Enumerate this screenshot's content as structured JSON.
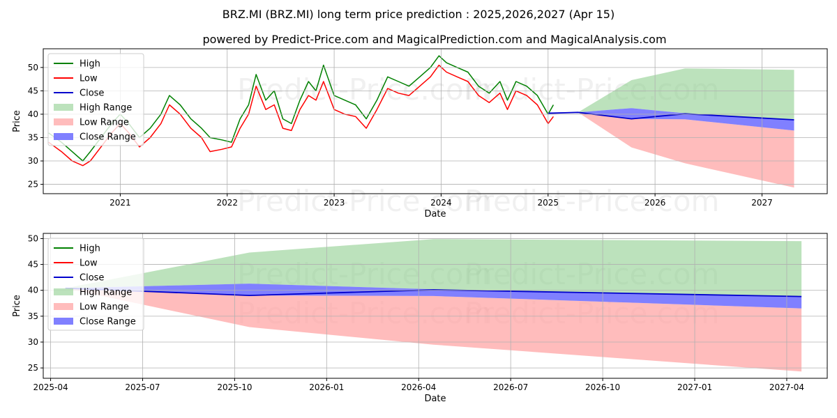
{
  "title": "BRZ.MI (BRZ.MI) long term price prediction : 2025,2026,2027 (Apr 15)",
  "subtitle": "powered by Predict-Price.com and MagicalPrediction.com and MagicalAnalysis.com",
  "watermark": "Predict-Price.com",
  "colors": {
    "high": "#008000",
    "low": "#ff0000",
    "close": "#0000cc",
    "high_range": "#90cf90",
    "low_range": "#ffa0a0",
    "close_range": "#6a6aff",
    "grid": "#b0b0b0"
  },
  "chart_data": [
    {
      "type": "line",
      "xlabel": "Date",
      "ylabel": "Price",
      "xlim": [
        2020.28,
        2027.61
      ],
      "ylim": [
        23,
        54
      ],
      "x_ticks": [
        "2021",
        "2022",
        "2023",
        "2024",
        "2025",
        "2026",
        "2027"
      ],
      "y_ticks": [
        25,
        30,
        35,
        40,
        45,
        50
      ],
      "grid": true,
      "legend_position": "upper-left",
      "legend": [
        "High",
        "Low",
        "Close",
        "High Range",
        "Low Range",
        "Close Range"
      ],
      "history": {
        "x": [
          2020.33,
          2020.45,
          2020.55,
          2020.65,
          2020.72,
          2020.82,
          2020.92,
          2021.0,
          2021.08,
          2021.18,
          2021.28,
          2021.38,
          2021.46,
          2021.56,
          2021.66,
          2021.76,
          2021.84,
          2021.95,
          2022.04,
          2022.12,
          2022.2,
          2022.27,
          2022.36,
          2022.44,
          2022.52,
          2022.6,
          2022.68,
          2022.76,
          2022.83,
          2022.9,
          2023.0,
          2023.1,
          2023.2,
          2023.3,
          2023.4,
          2023.5,
          2023.6,
          2023.7,
          2023.8,
          2023.9,
          2023.98,
          2024.05,
          2024.15,
          2024.25,
          2024.35,
          2024.45,
          2024.55,
          2024.62,
          2024.7,
          2024.8,
          2024.9,
          2025.0,
          2025.05
        ],
        "high": [
          36,
          34,
          32,
          30,
          32,
          35,
          38,
          40,
          38,
          35,
          37,
          40,
          44,
          42,
          39,
          37,
          35,
          34.5,
          34,
          39,
          42,
          48.5,
          43,
          45,
          39,
          38,
          43,
          47,
          45,
          50.5,
          44,
          43,
          42,
          39,
          43,
          48,
          47,
          46,
          48,
          50,
          52.5,
          51,
          50,
          49,
          46,
          44.5,
          47,
          43,
          47,
          46,
          44,
          40,
          42
        ],
        "low": [
          34,
          32,
          30,
          29,
          30,
          33,
          36,
          38,
          36,
          33,
          35,
          38,
          42,
          40,
          37,
          35,
          32,
          32.5,
          33,
          37,
          40,
          46,
          41,
          42,
          37,
          36.5,
          41,
          44,
          43,
          47,
          41,
          40,
          39.5,
          37,
          41,
          45.5,
          44.5,
          44,
          46,
          48,
          50.5,
          49,
          48,
          47,
          44,
          42.5,
          44.5,
          41,
          45,
          44,
          42,
          38,
          39.5
        ]
      },
      "forecast": {
        "x": [
          2025.0,
          2025.28,
          2025.78,
          2026.28,
          2027.3
        ],
        "close": [
          40.2,
          40.4,
          39.0,
          40.1,
          38.8
        ],
        "high_range_upper": [
          40.4,
          40.4,
          47.3,
          49.8,
          49.5
        ],
        "low_range_lower": [
          40.0,
          40.4,
          32.9,
          29.5,
          24.3
        ],
        "close_range_upper": [
          40.4,
          40.4,
          41.3,
          40.2,
          38.8
        ],
        "close_range_lower": [
          40.2,
          40.4,
          39.0,
          38.9,
          36.5
        ]
      }
    },
    {
      "type": "line",
      "xlabel": "Date",
      "ylabel": "Price",
      "xlim": [
        2025.23,
        2027.36
      ],
      "ylim": [
        23,
        51
      ],
      "x_ticks": [
        "2025-04",
        "2025-07",
        "2025-10",
        "2026-01",
        "2026-04",
        "2026-07",
        "2026-10",
        "2027-01",
        "2027-04"
      ],
      "y_ticks": [
        25,
        30,
        35,
        40,
        45,
        50
      ],
      "grid": true,
      "legend_position": "upper-left",
      "legend": [
        "High",
        "Low",
        "Close",
        "High Range",
        "Low Range",
        "Close Range"
      ],
      "forecast": {
        "x": [
          2025.29,
          2025.79,
          2026.29,
          2027.29
        ],
        "close": [
          40.4,
          39.0,
          40.1,
          38.8
        ],
        "high_range_upper": [
          40.4,
          47.3,
          49.9,
          49.5
        ],
        "low_range_lower": [
          40.4,
          32.9,
          29.5,
          24.3
        ],
        "close_range_upper": [
          40.4,
          41.3,
          40.2,
          38.8
        ],
        "close_range_lower": [
          40.4,
          39.0,
          38.9,
          36.5
        ]
      }
    }
  ]
}
